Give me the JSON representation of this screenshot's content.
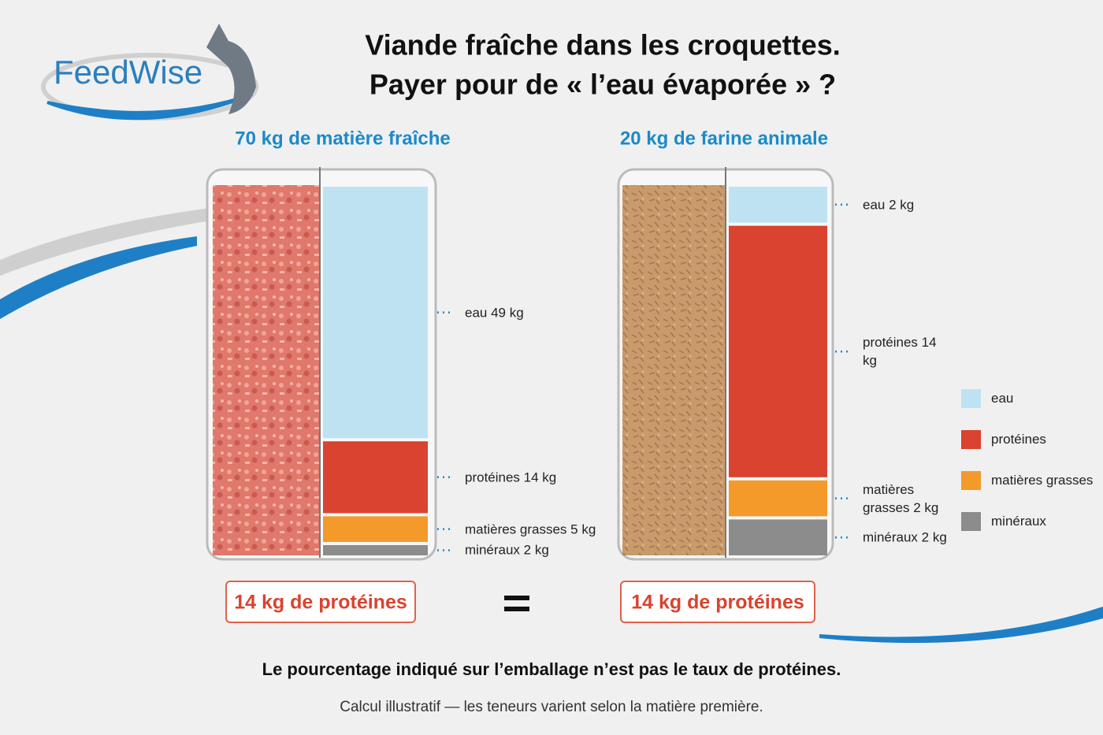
{
  "logo": "FeedWise",
  "title": [
    "Viande fraîche dans les croquettes.",
    "Payer pour de « l’eau évaporée » ?"
  ],
  "chart_data": {
    "type": "bar",
    "stacked": true,
    "categories": [
      "70 kg de matière fraîche",
      "20 kg de farine animale"
    ],
    "series": [
      {
        "name": "eau",
        "color": "#bfe2f2",
        "values": [
          49,
          2
        ],
        "value_labels": [
          "eau 49 kg",
          "eau 2 kg"
        ]
      },
      {
        "name": "protéines",
        "color": "#d9432f",
        "values": [
          14,
          14
        ],
        "value_labels": [
          "protéines 14 kg",
          "protéines 14 kg"
        ]
      },
      {
        "name": "matières grasses",
        "color": "#f39a2b",
        "values": [
          5,
          2
        ],
        "value_labels": [
          "matières grasses 5 kg",
          "matières grasses 2 kg"
        ]
      },
      {
        "name": "minéraux",
        "color": "#8c8c8c",
        "values": [
          2,
          2
        ],
        "value_labels": [
          "minéraux 2 kg",
          "minéraux 2 kg"
        ]
      }
    ],
    "legend": "right"
  },
  "badges": [
    "14 kg de protéines",
    "14 kg de protéines"
  ],
  "footer": {
    "note": "Le pourcentage indiqué sur l’emballage n’est pas le taux de protéines.",
    "caveat": "Calcul illustratif — les teneurs varient selon la matière première."
  }
}
